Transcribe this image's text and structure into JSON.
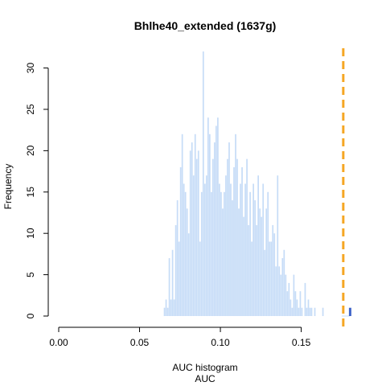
{
  "chart_data": {
    "type": "bar",
    "title": "Bhlhe40_extended (1637g)",
    "xlabel": "AUC histogram",
    "xlabel2": "AUC",
    "ylabel": "Frequency",
    "xlim": [
      0.0,
      0.19
    ],
    "ylim": [
      0,
      32
    ],
    "x_ticks": [
      "0.00",
      "0.05",
      "0.10",
      "0.15"
    ],
    "x_tick_values": [
      0.0,
      0.05,
      0.1,
      0.15
    ],
    "y_ticks": [
      "0",
      "5",
      "10",
      "15",
      "20",
      "25",
      "30"
    ],
    "y_tick_values": [
      0,
      5,
      10,
      15,
      20,
      25,
      30
    ],
    "bin_width": 0.001,
    "bin_start": 0.065,
    "counts": [
      1,
      2,
      1,
      7,
      2,
      8,
      2,
      11,
      14,
      9,
      18,
      22,
      16,
      15,
      13,
      10,
      20,
      21,
      17,
      22,
      19,
      20,
      9,
      15,
      32,
      16,
      17,
      24,
      22,
      15,
      19,
      21,
      23,
      24,
      16,
      15,
      13,
      15,
      17,
      19,
      21,
      16,
      14,
      18,
      22,
      19,
      13,
      16,
      18,
      12,
      16,
      19,
      11,
      15,
      9,
      16,
      14,
      11,
      17,
      13,
      12,
      16,
      8,
      13,
      15,
      9,
      9,
      11,
      10,
      6,
      17,
      6,
      5,
      7,
      8,
      5,
      3,
      4,
      2,
      1,
      5,
      3,
      2,
      1,
      3,
      1,
      0,
      4,
      1,
      2,
      1,
      1,
      0,
      1,
      0,
      0,
      0,
      0,
      1,
      0
    ],
    "highlight_x": 0.18,
    "highlight_value": 1,
    "threshold": 0.176,
    "colors": {
      "bars": "#c6dcf7",
      "highlight": "#3f64c8",
      "threshold": "#f5a623",
      "axis": "#000000"
    }
  }
}
